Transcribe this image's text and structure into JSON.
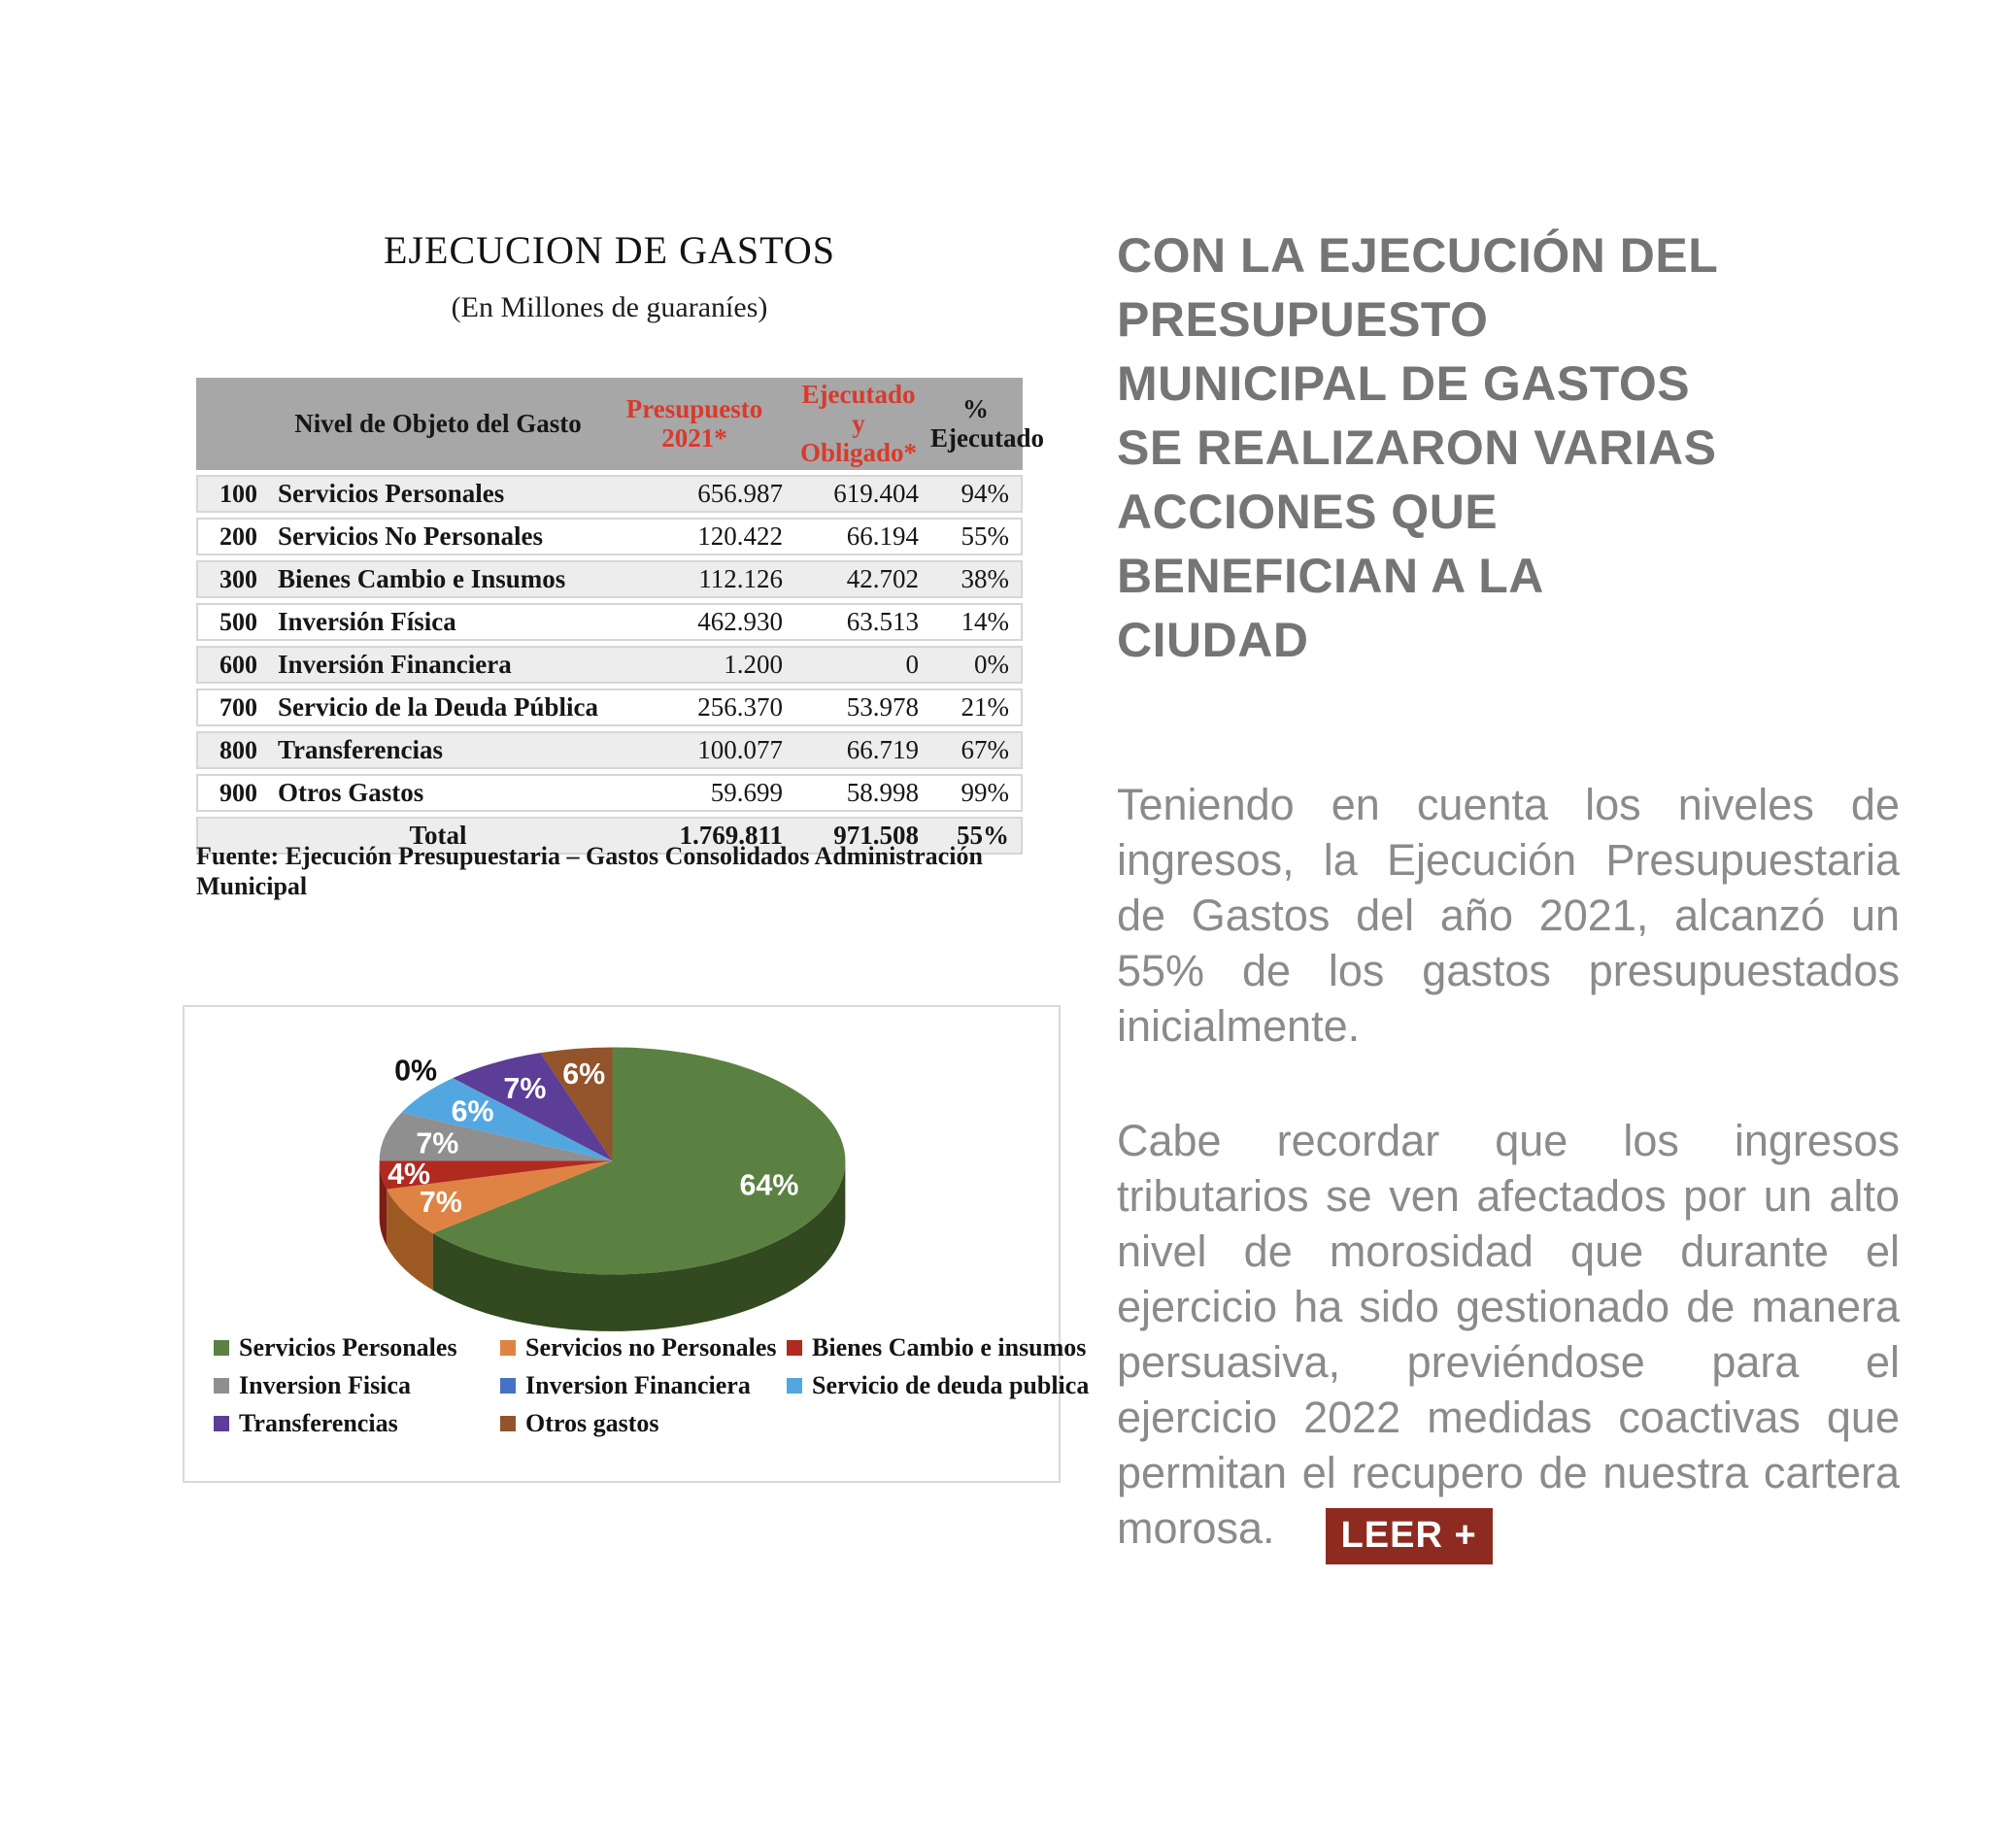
{
  "page": {
    "title": "EJECUCION DE GASTOS",
    "subtitle": "(En Millones de guaraníes)",
    "source": "Fuente: Ejecución Presupuestaria – Gastos Consolidados Administración Municipal"
  },
  "table": {
    "headers": [
      "",
      "Nivel de Objeto del Gasto",
      "Presupuesto 2021*",
      "Ejecutado y Obligado*",
      "% Ejecutado"
    ],
    "header_accent_color": "#d93a2b",
    "header_bg_color": "#a7a7a7",
    "rows": [
      {
        "code": "100",
        "label": "Servicios Personales",
        "presupuesto": "656.987",
        "ejecutado": "619.404",
        "pct": "94%"
      },
      {
        "code": "200",
        "label": "Servicios No Personales",
        "presupuesto": "120.422",
        "ejecutado": "66.194",
        "pct": "55%"
      },
      {
        "code": "300",
        "label": "Bienes Cambio e Insumos",
        "presupuesto": "112.126",
        "ejecutado": "42.702",
        "pct": "38%"
      },
      {
        "code": "500",
        "label": "Inversión Física",
        "presupuesto": "462.930",
        "ejecutado": "63.513",
        "pct": "14%"
      },
      {
        "code": "600",
        "label": "Inversión Financiera",
        "presupuesto": "1.200",
        "ejecutado": "0",
        "pct": "0%"
      },
      {
        "code": "700",
        "label": "Servicio de la Deuda Pública",
        "presupuesto": "256.370",
        "ejecutado": "53.978",
        "pct": "21%"
      },
      {
        "code": "800",
        "label": "Transferencias",
        "presupuesto": "100.077",
        "ejecutado": "66.719",
        "pct": "67%"
      },
      {
        "code": "900",
        "label": "Otros Gastos",
        "presupuesto": "59.699",
        "ejecutado": "58.998",
        "pct": "99%"
      }
    ],
    "total": {
      "label": "Total",
      "presupuesto": "1.769.811",
      "ejecutado": "971.508",
      "pct": "55%"
    }
  },
  "chart_data": {
    "type": "pie",
    "style": "3d",
    "title": "",
    "legend_position": "bottom",
    "categories": [
      "Servicios Personales",
      "Servicios no Personales",
      "Bienes Cambio e insumos",
      "Inversion Fisica",
      "Inversion Financiera",
      "Servicio de deuda publica",
      "Transferencias",
      "Otros gastos"
    ],
    "values": [
      64,
      7,
      4,
      7,
      0,
      6,
      7,
      6
    ],
    "display_labels": [
      "64%",
      "7%",
      "4%",
      "7%",
      "0%",
      "6%",
      "7%",
      "6%"
    ],
    "colors": [
      "#5b8142",
      "#df8344",
      "#b02a1f",
      "#8f8f8f",
      "#4472c4",
      "#53a7e0",
      "#5c3d97",
      "#93532b"
    ],
    "side_colors": [
      "#33491f",
      "#9c5a22",
      "#7c1d15"
    ]
  },
  "article": {
    "heading_lines": [
      "CON LA EJECUCIÓN DEL",
      "PRESUPUESTO",
      "MUNICIPAL DE GASTOS",
      "SE REALIZARON VARIAS",
      "ACCIONES QUE",
      "BENEFICIAN A LA",
      "CIUDAD"
    ],
    "para1": "Teniendo en cuenta los niveles de ingresos, la Ejecución Presupuestaria de Gastos del año 2021, alcanzó un 55% de los gastos presupuestados inicialmente.",
    "para2": "Cabe recordar que los ingresos tributarios se ven afectados por un alto nivel de morosidad que durante el ejercicio ha sido gestionado de manera persuasiva, previéndose para el ejercicio 2022 medidas coactivas que permitan el recupero de nuestra cartera morosa.",
    "leer_label": "LEER +"
  }
}
